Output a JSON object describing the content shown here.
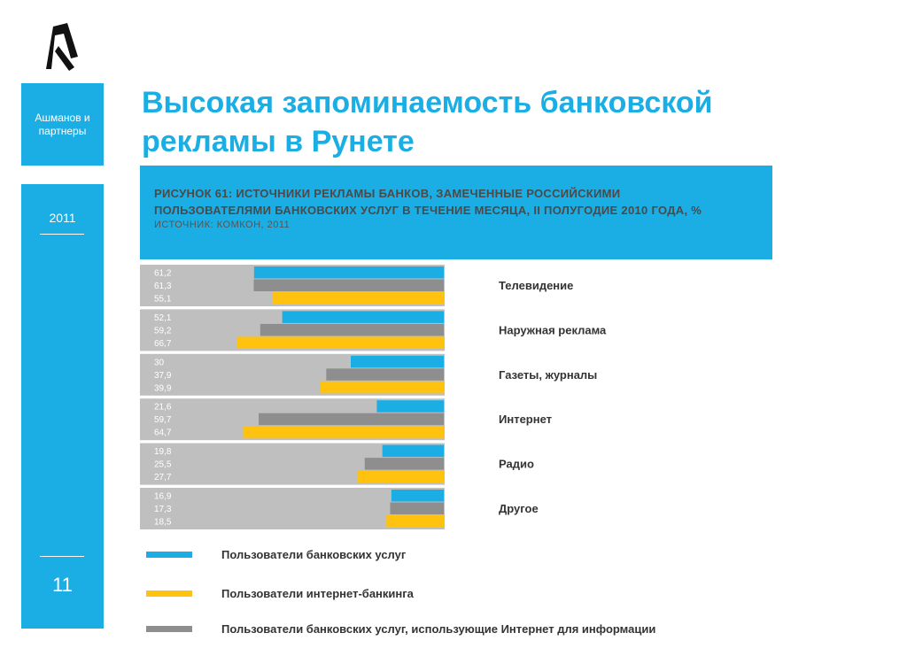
{
  "sidebar": {
    "company": "Ашманов и партнеры",
    "year": "2011",
    "page_number": "11"
  },
  "slide_title": "Высокая запоминаемость банковской рекламы в Рунете",
  "figure": {
    "caption_line1": "РИСУНОК 61: ИСТОЧНИКИ РЕКЛАМЫ БАНКОВ, ЗАМЕЧЕННЫЕ РОССИЙСКИМИ",
    "caption_line2": "ПОЛЬЗОВАТЕЛЯМИ БАНКОВСКИХ УСЛУГ В ТЕЧЕНИЕ МЕСЯЦА, II ПОЛУГОДИЕ 2010 ГОДА, %",
    "source": "ИСТОЧНИК: КОМКОН, 2011"
  },
  "colors": {
    "accent": "#1aaee5",
    "blue_series": "#1aaee5",
    "gray_series": "#8e8e8e",
    "yellow_series": "#ffc20e",
    "group_background": "#bfbfbf"
  },
  "chart_data": {
    "type": "bar",
    "orientation": "horizontal",
    "title": "Источники рекламы банков, замеченные российскими пользователями банковских услуг в течение месяца, II полугодие 2010 года, %",
    "categories": [
      "Телевидение",
      "Наружная реклама",
      "Газеты, журналы",
      "Интернет",
      "Радио",
      "Другое"
    ],
    "series": [
      {
        "name": "Пользователи банковских услуг",
        "color": "#1aaee5",
        "values": [
          61.2,
          52.1,
          30,
          21.6,
          19.8,
          16.9
        ],
        "labels": [
          "61,2",
          "52,1",
          "30",
          "21,6",
          "19,8",
          "16,9"
        ]
      },
      {
        "name": "Пользователи банковских услуг, использующие Интернет для информации",
        "color": "#8e8e8e",
        "values": [
          61.3,
          59.2,
          37.9,
          59.7,
          25.5,
          17.3
        ],
        "labels": [
          "61,3",
          "59,2",
          "37,9",
          "59,7",
          "25,5",
          "17,3"
        ]
      },
      {
        "name": "Пользователи интернет-банкинга",
        "color": "#ffc20e",
        "values": [
          55.1,
          66.7,
          39.9,
          64.7,
          27.7,
          18.5
        ],
        "labels": [
          "55,1",
          "66,7",
          "39,9",
          "64,7",
          "27,7",
          "18,5"
        ]
      }
    ],
    "xlim": [
      0,
      100
    ],
    "legend_position": "bottom",
    "legend": [
      {
        "name": "Пользователи банковских услуг",
        "color": "#1aaee5"
      },
      {
        "name": "Пользователи интернет-банкинга",
        "color": "#ffc20e"
      },
      {
        "name": "Пользователи банковских услуг, использующие Интернет для информации",
        "color": "#8e8e8e"
      }
    ]
  }
}
